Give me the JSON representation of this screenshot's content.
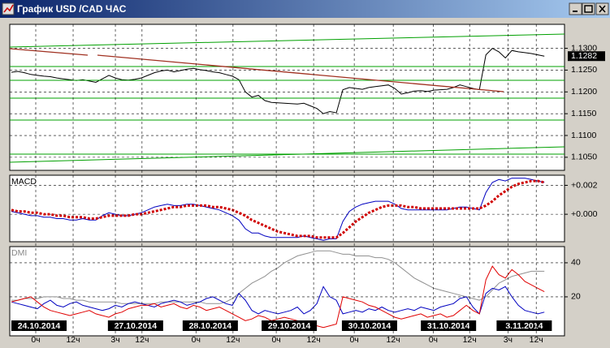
{
  "window": {
    "title": "График USD /CAD  ЧАС"
  },
  "chart_data": [
    {
      "type": "line",
      "color": "#000000",
      "values": [
        1.1245,
        1.1247,
        1.1244,
        1.124,
        1.1238,
        1.1236,
        1.1235,
        1.1232,
        1.123,
        1.1228,
        1.1226,
        1.1228,
        1.1225,
        1.1222,
        1.123,
        1.1238,
        1.1232,
        1.1228,
        1.1227,
        1.1229,
        1.1232,
        1.1238,
        1.1244,
        1.1248,
        1.125,
        1.1246,
        1.1249,
        1.1252,
        1.1254,
        1.1251,
        1.1249,
        1.1246,
        1.1244,
        1.124,
        1.1236,
        1.1228,
        1.12,
        1.1188,
        1.1192,
        1.118,
        1.1176,
        1.1175,
        1.1174,
        1.1173,
        1.1172,
        1.1174,
        1.1168,
        1.1162,
        1.115,
        1.1155,
        1.1152,
        1.1205,
        1.121,
        1.1208,
        1.1206,
        1.121,
        1.1212,
        1.1214,
        1.1216,
        1.1208,
        1.1195,
        1.1198,
        1.1202,
        1.1203,
        1.1201,
        1.1204,
        1.1205,
        1.1206,
        1.121,
        1.1216,
        1.1212,
        1.1208,
        1.1205,
        1.1285,
        1.13,
        1.1292,
        1.1278,
        1.1295,
        1.1292,
        1.129,
        1.1288,
        1.1285,
        1.1282
      ],
      "current_price": 1.1282,
      "xlim": [
        -0.25,
        85.1
      ],
      "ylim": [
        1.102,
        1.1355
      ],
      "yticks": [
        {
          "value": 1.13,
          "label": "1.1300"
        },
        {
          "value": 1.125,
          "label": "1.1250"
        },
        {
          "value": 1.12,
          "label": "1.1200"
        },
        {
          "value": 1.115,
          "label": "1.1150"
        },
        {
          "value": 1.11,
          "label": "1.1100"
        },
        {
          "value": 1.105,
          "label": "1.1050"
        }
      ],
      "grid": true
    },
    {
      "type": "line",
      "title": "MACD",
      "series": [
        {
          "color": "#0000c0",
          "style": "solid",
          "values": [
            0.0002,
            0.0001,
            0.0,
            -0.0001,
            -0.0001,
            -0.0002,
            -0.0002,
            -0.0003,
            -0.0003,
            -0.0004,
            -0.0004,
            -0.0003,
            -0.0004,
            -0.0004,
            -0.0001,
            0.0001,
            0.0,
            -0.0001,
            -0.0001,
            0.0,
            0.0001,
            0.0003,
            0.0005,
            0.0006,
            0.0007,
            0.0006,
            0.0006,
            0.0007,
            0.0007,
            0.0006,
            0.0005,
            0.0004,
            0.0003,
            0.0001,
            -0.0001,
            -0.0004,
            -0.001,
            -0.0013,
            -0.0013,
            -0.0015,
            -0.0016,
            -0.0016,
            -0.0016,
            -0.0016,
            -0.0016,
            -0.0015,
            -0.0016,
            -0.0017,
            -0.0018,
            -0.0017,
            -0.0017,
            -0.0005,
            0.0002,
            0.0005,
            0.0007,
            0.0008,
            0.0009,
            0.0009,
            0.0009,
            0.0007,
            0.0004,
            0.0003,
            0.0003,
            0.0003,
            0.0003,
            0.0003,
            0.0003,
            0.0003,
            0.0004,
            0.0005,
            0.0005,
            0.0004,
            0.0003,
            0.0015,
            0.0022,
            0.0024,
            0.0023,
            0.0025,
            0.0025,
            0.0025,
            0.0024,
            0.0023,
            0.0022
          ]
        },
        {
          "color": "#d00000",
          "style": "dotted",
          "values": [
            0.0003,
            0.0002,
            0.0002,
            0.0001,
            0.0001,
            0.0,
            0.0,
            -0.0001,
            -0.0001,
            -0.0002,
            -0.0002,
            -0.0002,
            -0.0003,
            -0.0003,
            -0.0002,
            -0.0001,
            -0.0001,
            -0.0001,
            -0.0001,
            0.0,
            0.0,
            0.0001,
            0.0002,
            0.0003,
            0.0004,
            0.0005,
            0.0005,
            0.0006,
            0.0006,
            0.0006,
            0.0006,
            0.0005,
            0.0005,
            0.0004,
            0.0003,
            0.0001,
            -0.0001,
            -0.0004,
            -0.0006,
            -0.0008,
            -0.001,
            -0.0012,
            -0.0013,
            -0.0014,
            -0.0015,
            -0.0015,
            -0.0015,
            -0.0016,
            -0.0016,
            -0.0016,
            -0.0016,
            -0.0013,
            -0.0009,
            -0.0005,
            -0.0002,
            0.0001,
            0.0003,
            0.0005,
            0.0006,
            0.0006,
            0.0006,
            0.0005,
            0.0005,
            0.0004,
            0.0004,
            0.0004,
            0.0004,
            0.0004,
            0.0004,
            0.0004,
            0.0004,
            0.0004,
            0.0004,
            0.0006,
            0.0009,
            0.0013,
            0.0016,
            0.0019,
            0.0021,
            0.0022,
            0.0023,
            0.0023,
            0.0022
          ]
        }
      ],
      "xlim": [
        -0.25,
        85.1
      ],
      "ylim": [
        -0.0019,
        0.0027
      ],
      "yticks": [
        {
          "value": 0.002,
          "label": "+0.002"
        },
        {
          "value": 0,
          "label": "+0.000"
        }
      ],
      "grid": true
    },
    {
      "type": "line",
      "title": "DMI",
      "series": [
        {
          "color": "#909090",
          "style": "solid",
          "values": [
            18,
            18,
            19,
            19,
            19,
            20,
            20,
            20,
            19,
            19,
            18,
            18,
            17,
            17,
            17,
            17,
            17,
            16,
            16,
            16,
            16,
            16,
            16,
            17,
            17,
            17,
            17,
            17,
            17,
            17,
            16,
            16,
            16,
            17,
            19,
            22,
            25,
            28,
            30,
            32,
            35,
            37,
            40,
            42,
            44,
            45,
            46,
            47,
            47,
            47,
            46,
            45,
            45,
            44,
            44,
            44,
            43,
            43,
            42,
            40,
            37,
            34,
            31,
            29,
            27,
            25,
            24,
            23,
            22,
            21,
            20,
            19,
            18,
            20,
            24,
            28,
            30,
            32,
            33,
            34,
            35,
            35,
            35
          ]
        },
        {
          "color": "#0000c0",
          "style": "solid",
          "values": [
            17,
            16,
            15,
            14,
            13,
            16,
            18,
            15,
            14,
            16,
            17,
            15,
            14,
            13,
            12,
            13,
            15,
            14,
            16,
            17,
            16,
            15,
            14,
            16,
            17,
            18,
            17,
            15,
            16,
            17,
            19,
            20,
            18,
            16,
            15,
            22,
            18,
            12,
            10,
            12,
            11,
            10,
            11,
            12,
            14,
            10,
            12,
            16,
            26,
            20,
            18,
            10,
            11,
            12,
            11,
            13,
            12,
            14,
            12,
            11,
            12,
            13,
            12,
            14,
            13,
            12,
            14,
            15,
            16,
            19,
            20,
            14,
            10,
            22,
            25,
            24,
            26,
            20,
            15,
            12,
            11,
            10,
            11
          ]
        },
        {
          "color": "#e00000",
          "style": "solid",
          "values": [
            17,
            18,
            19,
            20,
            17,
            14,
            12,
            11,
            10,
            9,
            10,
            11,
            12,
            10,
            9,
            8,
            10,
            11,
            13,
            14,
            15,
            15,
            16,
            14,
            15,
            16,
            14,
            13,
            15,
            14,
            12,
            13,
            14,
            12,
            10,
            8,
            6,
            7,
            9,
            8,
            6,
            7,
            8,
            7,
            6,
            5,
            4,
            3,
            2,
            3,
            4,
            20,
            19,
            18,
            17,
            15,
            14,
            12,
            10,
            8,
            7,
            8,
            9,
            10,
            8,
            9,
            10,
            8,
            9,
            12,
            15,
            12,
            10,
            30,
            38,
            33,
            31,
            36,
            33,
            29,
            27,
            25,
            23
          ]
        }
      ],
      "xlim": [
        -0.25,
        85.1
      ],
      "ylim": [
        -2.9,
        49.5
      ],
      "yticks": [
        40,
        20
      ],
      "grid": true,
      "xticks": [
        {
          "value": 4.25,
          "label": "24.10.2014"
        },
        {
          "value": 19.1,
          "label": "27.10.2014"
        },
        {
          "value": 30.6,
          "label": "28.10.2014"
        },
        {
          "value": 42.75,
          "label": "29.10.2014"
        },
        {
          "value": 55.1,
          "label": "30.10.2014"
        },
        {
          "value": 67.25,
          "label": "31.10.2014"
        },
        {
          "value": 78.9,
          "label": "3.11.2014"
        }
      ],
      "xticks_minor": [
        {
          "value": 3.75,
          "label": "0ч"
        },
        {
          "value": 9.5,
          "label": "12ч"
        },
        {
          "value": 16,
          "label": "3ч"
        },
        {
          "value": 20.1,
          "label": "12ч"
        },
        {
          "value": 28.4,
          "label": "0ч"
        },
        {
          "value": 34.1,
          "label": "12ч"
        },
        {
          "value": 40.75,
          "label": "0ч"
        },
        {
          "value": 46.5,
          "label": "12ч"
        },
        {
          "value": 52.75,
          "label": "0ч"
        },
        {
          "value": 58.75,
          "label": "12ч"
        },
        {
          "value": 64.9,
          "label": "0ч"
        },
        {
          "value": 70.5,
          "label": "12ч"
        },
        {
          "value": 76.4,
          "label": "3ч"
        },
        {
          "value": 80.75,
          "label": "12ч"
        }
      ]
    }
  ]
}
